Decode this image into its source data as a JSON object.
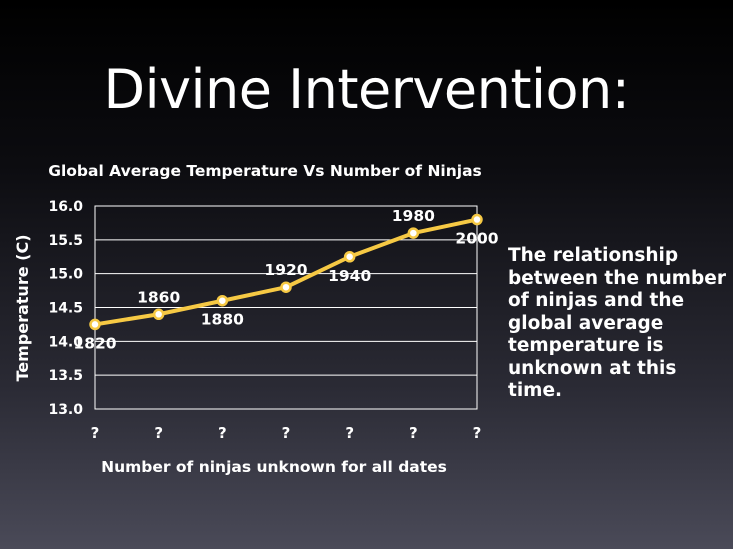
{
  "slide": {
    "title": "Divine Intervention:",
    "note": "The relationship between the number of ninjas and the global average temperature is unknown at this time."
  },
  "chart_data": {
    "type": "line",
    "title": "Global Average Temperature Vs Number of Ninjas",
    "xlabel": "Number of ninjas unknown for all dates",
    "ylabel": "Temperature (C)",
    "categories": [
      "?",
      "?",
      "?",
      "?",
      "?",
      "?",
      "?"
    ],
    "series": [
      {
        "values": [
          14.25,
          14.4,
          14.6,
          14.8,
          15.25,
          15.6,
          15.8
        ],
        "labels": [
          "1820",
          "1860",
          "1880",
          "1920",
          "1940",
          "1980",
          "2000"
        ],
        "label_position": [
          "below",
          "above",
          "below",
          "above",
          "below",
          "above",
          "below"
        ]
      }
    ],
    "ylim": [
      13.0,
      16.0
    ],
    "yticks": [
      "13.0",
      "13.5",
      "14.0",
      "14.5",
      "15.0",
      "15.5",
      "16.0"
    ],
    "grid": true,
    "legend": "none",
    "colors": {
      "line": "#f6c944",
      "marker_fill": "#ffffff",
      "grid": "#ffffff"
    }
  }
}
